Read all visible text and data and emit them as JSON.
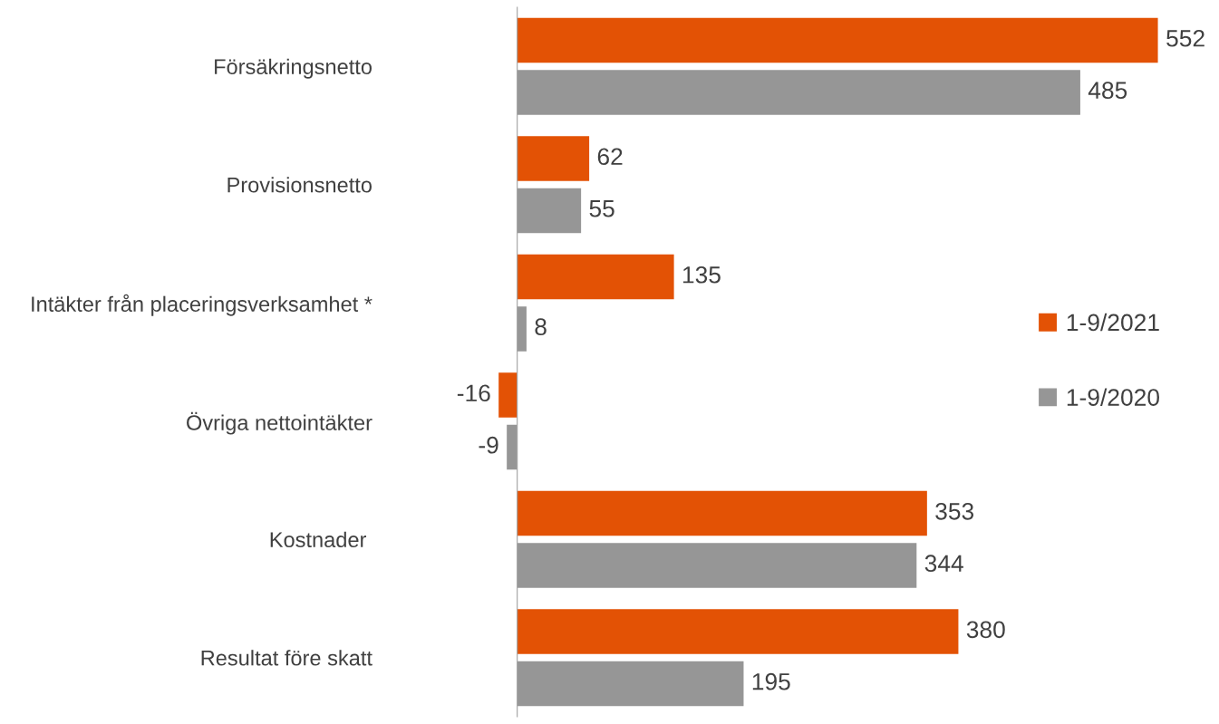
{
  "chart_data": {
    "type": "bar",
    "orientation": "horizontal",
    "data_labels": true,
    "legend": "right",
    "grid": false,
    "categories": [
      "Försäkringsnetto",
      "Provisionsnetto",
      "Intäkter från placeringsverksamhet *",
      "Övriga nettointäkter",
      "Kostnader ",
      "Resultat före skatt"
    ],
    "series": [
      {
        "name": "1-9/2021",
        "color": "#e35205",
        "values": [
          552,
          62,
          135,
          -16,
          353,
          380
        ]
      },
      {
        "name": "1-9/2020",
        "color": "#969696",
        "values": [
          485,
          55,
          8,
          -9,
          344,
          195
        ]
      }
    ]
  }
}
